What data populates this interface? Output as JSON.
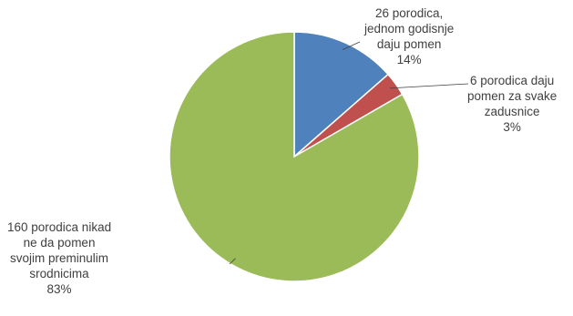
{
  "chart_data": {
    "type": "pie",
    "slices": [
      {
        "label_lines": [
          "26 porodica,",
          "jednom godisnje",
          "daju pomen"
        ],
        "percent_label": "14%",
        "value": 26,
        "color": "#4f81bd"
      },
      {
        "label_lines": [
          "6 porodica daju",
          "pomen za svake",
          "zadusnice"
        ],
        "percent_label": "3%",
        "value": 6,
        "color": "#c0504d"
      },
      {
        "label_lines": [
          "160 porodica nikad",
          "ne da pomen",
          "svojim preminulim",
          "srodnicima"
        ],
        "percent_label": "83%",
        "value": 160,
        "color": "#9bbb59"
      }
    ],
    "start_angle": "12 o'clock",
    "direction": "clockwise"
  }
}
